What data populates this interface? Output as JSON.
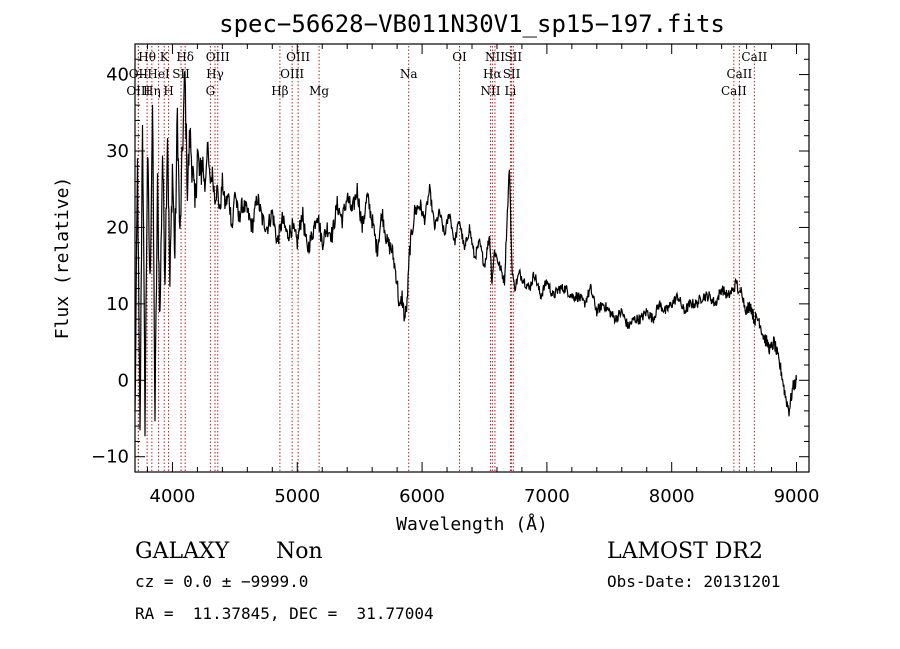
{
  "chart_data": {
    "type": "line",
    "title": "spec−56628−VB011N30V1_sp15−197.fits",
    "xlabel": "Wavelength (Å)",
    "ylabel": "Flux (relative)",
    "xlim": [
      3700,
      9100
    ],
    "ylim": [
      -12,
      44
    ],
    "xticks": [
      4000,
      5000,
      6000,
      7000,
      8000,
      9000
    ],
    "yticks": [
      -10,
      0,
      10,
      20,
      30,
      40
    ],
    "grid": false,
    "line_color": "#000000",
    "marker_color": "#b22222",
    "series": [
      {
        "x": [
          3700,
          3720,
          3740,
          3760,
          3780,
          3800,
          3820,
          3840,
          3860,
          3880,
          3900,
          3920,
          3940,
          3960,
          3980,
          4000,
          4020,
          4040,
          4060,
          4080,
          4100,
          4120,
          4140,
          4160,
          4180,
          4200,
          4220,
          4240,
          4260,
          4280,
          4300,
          4320,
          4340,
          4360,
          4380,
          4400,
          4420,
          4450,
          4480,
          4500,
          4530,
          4560,
          4600,
          4640,
          4680,
          4720,
          4760,
          4800,
          4840,
          4880,
          4920,
          4960,
          5000,
          5040,
          5080,
          5120,
          5160,
          5200,
          5240,
          5280,
          5320,
          5360,
          5400,
          5440,
          5480,
          5520,
          5560,
          5600,
          5640,
          5680,
          5720,
          5760,
          5800,
          5820,
          5840,
          5860,
          5880,
          5900,
          5940,
          5980,
          6020,
          6060,
          6100,
          6140,
          6180,
          6220,
          6260,
          6300,
          6340,
          6380,
          6420,
          6460,
          6500,
          6540,
          6560,
          6580,
          6620,
          6660,
          6700,
          6720,
          6740,
          6780,
          6820,
          6860,
          6900,
          6950,
          7000,
          7050,
          7100,
          7150,
          7200,
          7250,
          7300,
          7350,
          7400,
          7450,
          7500,
          7550,
          7600,
          7650,
          7700,
          7750,
          7800,
          7850,
          7900,
          7950,
          8000,
          8050,
          8100,
          8150,
          8200,
          8250,
          8300,
          8350,
          8400,
          8450,
          8500,
          8520,
          8540,
          8560,
          8580,
          8600,
          8630,
          8660,
          8700,
          8730,
          8760,
          8790,
          8820,
          8850,
          8880,
          8910,
          8940,
          8970,
          9000
        ],
        "y": [
          -5,
          28,
          -8,
          35,
          -5,
          30,
          12,
          36,
          -5,
          25,
          8,
          30,
          14,
          33,
          12,
          28,
          16,
          35,
          18,
          30,
          40,
          25,
          32,
          28,
          22,
          30,
          26,
          29,
          25,
          31,
          26,
          27,
          24,
          25,
          22,
          26,
          23,
          24,
          20,
          25,
          21,
          23,
          22,
          20,
          24,
          21,
          20,
          22,
          18,
          21,
          19,
          20,
          18,
          22,
          17,
          19,
          22,
          18,
          20,
          19,
          23,
          21,
          24,
          22,
          25,
          20,
          24,
          21,
          17,
          22,
          18,
          17,
          13,
          9,
          11,
          8,
          10,
          17,
          22,
          23,
          21,
          25,
          20,
          22,
          19,
          22,
          18,
          21,
          17,
          20,
          16,
          18,
          15,
          19,
          13,
          17,
          15,
          13,
          28,
          15,
          12,
          14,
          13,
          12,
          14,
          11,
          13,
          11,
          12,
          12,
          11,
          11,
          10,
          12,
          9,
          10,
          9,
          8,
          9,
          7,
          8,
          8,
          9,
          8,
          10,
          9,
          10,
          11,
          9,
          10,
          10,
          11,
          11,
          10,
          12,
          11,
          12,
          13,
          11,
          12,
          10,
          9,
          10,
          8,
          8,
          6,
          5,
          4,
          5,
          3,
          1,
          -2,
          -4,
          -1,
          0
        ]
      }
    ],
    "line_labels": [
      {
        "label": "Hθ",
        "x": 3797,
        "row": 1
      },
      {
        "label": "K",
        "x": 3934,
        "row": 1
      },
      {
        "label": "Hδ",
        "x": 4102,
        "row": 1
      },
      {
        "label": "OIII",
        "x": 4363,
        "row": 1
      },
      {
        "label": "OIII",
        "x": 5007,
        "row": 1
      },
      {
        "label": "OI",
        "x": 6300,
        "row": 1
      },
      {
        "label": "NII",
        "x": 6584,
        "row": 1
      },
      {
        "label": "SII",
        "x": 6731,
        "row": 1
      },
      {
        "label": "CaII",
        "x": 8662,
        "row": 1
      },
      {
        "label": "OII",
        "x": 3727,
        "row": 2
      },
      {
        "label": "HeI",
        "x": 3889,
        "row": 2
      },
      {
        "label": "SII",
        "x": 4069,
        "row": 2
      },
      {
        "label": "Hγ",
        "x": 4341,
        "row": 2
      },
      {
        "label": "OIII",
        "x": 4959,
        "row": 2
      },
      {
        "label": "Na",
        "x": 5893,
        "row": 2
      },
      {
        "label": "Hα",
        "x": 6563,
        "row": 2
      },
      {
        "label": "SII",
        "x": 6717,
        "row": 2
      },
      {
        "label": "CaII",
        "x": 8542,
        "row": 2
      },
      {
        "label": "OIII",
        "x": 3727,
        "row": 3
      },
      {
        "label": "Hη",
        "x": 3835,
        "row": 3
      },
      {
        "label": "H",
        "x": 3969,
        "row": 3
      },
      {
        "label": "G",
        "x": 4304,
        "row": 3
      },
      {
        "label": "Hβ",
        "x": 4861,
        "row": 3
      },
      {
        "label": "Mg",
        "x": 5175,
        "row": 3
      },
      {
        "label": "NII",
        "x": 6548,
        "row": 3
      },
      {
        "label": "Li",
        "x": 6708,
        "row": 3
      },
      {
        "label": "CaII",
        "x": 8498,
        "row": 3
      }
    ]
  },
  "info": {
    "object_class": "GALAXY",
    "subclass": "Non",
    "survey": "LAMOST DR2",
    "cz_line": "cz = 0.0 ± −9999.0",
    "obs_date": "Obs-Date: 20131201",
    "radec_line": "RA =  11.37845, DEC =  31.77004"
  }
}
